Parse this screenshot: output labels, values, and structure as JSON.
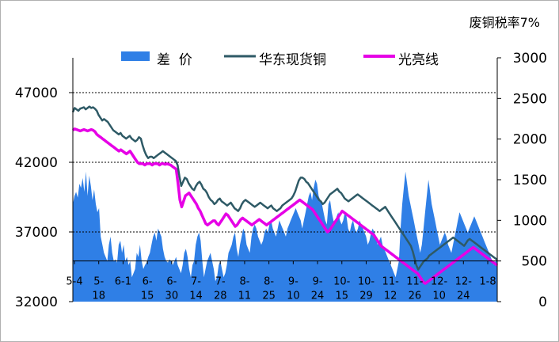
{
  "chart_data": {
    "type": "line",
    "title": "废铜税率7%",
    "legend_position": "top",
    "grid": "horizontal dashed",
    "colors": {
      "spread": "#2f7fe6",
      "east_china_copper": "#2e5a66",
      "bright_wire": "#e600e6"
    },
    "left_axis": {
      "ylim": [
        32000,
        49500
      ],
      "ticks": [
        "32000",
        "37000",
        "42000",
        "47000"
      ]
    },
    "right_axis": {
      "ylim": [
        0,
        3000
      ],
      "ticks": [
        "0",
        "500",
        "1000",
        "1500",
        "2000",
        "2500",
        "3000"
      ]
    },
    "x_labels": [
      [
        "5-4",
        ""
      ],
      [
        "5-",
        "18"
      ],
      [
        "6-1",
        ""
      ],
      [
        "6-",
        "15"
      ],
      [
        "6-",
        "30"
      ],
      [
        "7-",
        "14"
      ],
      [
        "7-",
        "28"
      ],
      [
        "8-",
        "11"
      ],
      [
        "8-",
        "25"
      ],
      [
        "9-",
        "10"
      ],
      [
        "9-",
        "24"
      ],
      [
        "10-",
        "15"
      ],
      [
        "10-",
        "29"
      ],
      [
        "11-",
        "12"
      ],
      [
        "11-",
        "26"
      ],
      [
        "12-",
        "10"
      ],
      [
        "12-",
        "24"
      ],
      [
        "1-8",
        ""
      ]
    ],
    "series": [
      {
        "name": "差  价",
        "type": "area",
        "axis": "right",
        "values": [
          1200,
          1300,
          1350,
          1280,
          1450,
          1400,
          1520,
          1350,
          1600,
          1300,
          1550,
          1420,
          1250,
          1380,
          1200,
          1100,
          1150,
          800,
          700,
          600,
          550,
          500,
          700,
          800,
          600,
          500,
          520,
          480,
          700,
          750,
          600,
          700,
          500,
          550,
          450,
          500,
          300,
          350,
          400,
          600,
          550,
          700,
          500,
          400,
          450,
          480,
          550,
          600,
          700,
          800,
          850,
          750,
          900,
          850,
          800,
          650,
          550,
          500,
          480,
          520,
          500,
          450,
          500,
          550,
          450,
          400,
          350,
          450,
          600,
          650,
          550,
          400,
          300,
          450,
          500,
          700,
          800,
          850,
          750,
          500,
          300,
          400,
          500,
          550,
          600,
          500,
          400,
          250,
          300,
          450,
          500,
          400,
          300,
          350,
          450,
          600,
          650,
          700,
          800,
          850,
          650,
          550,
          700,
          800,
          900,
          850,
          700,
          650,
          600,
          800,
          900,
          950,
          900,
          800,
          750,
          700,
          750,
          850,
          900,
          850,
          950,
          1000,
          900,
          850,
          800,
          900,
          1000,
          950,
          900,
          850,
          800,
          900,
          950,
          1000,
          1050,
          1100,
          1150,
          1100,
          1050,
          1000,
          900,
          1000,
          1100,
          1200,
          1300,
          1350,
          1250,
          1400,
          1500,
          1450,
          1300,
          1250,
          1200,
          1100,
          1000,
          950,
          1200,
          1250,
          1100,
          1000,
          950,
          1050,
          1100,
          1000,
          950,
          1000,
          1100,
          1050,
          900,
          850,
          950,
          1000,
          900,
          850,
          900,
          1000,
          950,
          900,
          850,
          800,
          700,
          750,
          850,
          900,
          850,
          800,
          700,
          750,
          800,
          700,
          650,
          600,
          550,
          500,
          450,
          400,
          350,
          300,
          400,
          500,
          900,
          1200,
          1400,
          1600,
          1450,
          1300,
          1200,
          1100,
          1000,
          900,
          800,
          700,
          600,
          700,
          900,
          1100,
          1300,
          1500,
          1350,
          1200,
          1100,
          1000,
          900,
          800,
          700,
          750,
          800,
          850,
          800,
          700,
          650,
          600,
          700,
          800,
          900,
          1000,
          1100,
          1050,
          1000,
          950,
          900,
          850,
          900,
          950,
          1000,
          1050,
          1000,
          950,
          900,
          850,
          800,
          750,
          700,
          650,
          600,
          550,
          500,
          450,
          500,
          520
        ]
      },
      {
        "name": "华东现货铜",
        "type": "line",
        "axis": "left",
        "values": [
          45600,
          45900,
          45800,
          45700,
          45850,
          45900,
          45950,
          45800,
          45900,
          46000,
          45900,
          45950,
          45850,
          45700,
          45400,
          45200,
          45000,
          45100,
          45000,
          44900,
          44700,
          44500,
          44300,
          44200,
          44100,
          44000,
          44100,
          43900,
          43800,
          43700,
          43800,
          43900,
          43700,
          43600,
          43500,
          43600,
          43800,
          43700,
          43200,
          42800,
          42500,
          42300,
          42400,
          42400,
          42300,
          42400,
          42500,
          42600,
          42700,
          42800,
          42700,
          42600,
          42500,
          42400,
          42300,
          42200,
          42100,
          41800,
          41000,
          40300,
          40600,
          40900,
          40800,
          40500,
          40300,
          40100,
          40000,
          40300,
          40500,
          40600,
          40400,
          40100,
          40000,
          39800,
          39500,
          39300,
          39200,
          39000,
          39100,
          39300,
          39400,
          39200,
          39100,
          39000,
          38900,
          39000,
          39100,
          38900,
          38700,
          38600,
          38500,
          38700,
          39000,
          39200,
          39300,
          39200,
          39100,
          39000,
          38900,
          38800,
          38900,
          39000,
          39100,
          39000,
          38900,
          38800,
          38700,
          38800,
          38900,
          38700,
          38600,
          38500,
          38600,
          38700,
          38900,
          39000,
          39100,
          39200,
          39300,
          39400,
          39600,
          39900,
          40300,
          40700,
          40900,
          40900,
          40800,
          40600,
          40500,
          40300,
          40100,
          39900,
          39700,
          39500,
          39300,
          39200,
          39000,
          39100,
          39300,
          39500,
          39700,
          39800,
          39900,
          40000,
          40100,
          39900,
          39800,
          39600,
          39400,
          39300,
          39200,
          39300,
          39400,
          39500,
          39600,
          39700,
          39600,
          39500,
          39400,
          39300,
          39200,
          39100,
          39000,
          38900,
          38800,
          38700,
          38600,
          38500,
          38600,
          38700,
          38800,
          38600,
          38400,
          38200,
          38000,
          37800,
          37600,
          37400,
          37200,
          37000,
          36800,
          36600,
          36400,
          36200,
          36000,
          35600,
          35100,
          34600,
          34300,
          34500,
          34700,
          34900,
          35000,
          35100,
          35300,
          35400,
          35500,
          35600,
          35700,
          35800,
          35900,
          36000,
          36100,
          36200,
          36300,
          36400,
          36500,
          36600,
          36500,
          36400,
          36300,
          36200,
          36100,
          36000,
          36200,
          36400,
          36500,
          36400,
          36300,
          36200,
          36100,
          36000,
          35900,
          35800,
          35700,
          35600,
          35500,
          35400,
          35300,
          35200,
          35100,
          35000
        ]
      },
      {
        "name": "光亮线",
        "type": "line",
        "axis": "left",
        "values": [
          44300,
          44400,
          44350,
          44300,
          44250,
          44300,
          44350,
          44300,
          44250,
          44300,
          44350,
          44300,
          44200,
          44000,
          43900,
          43800,
          43700,
          43600,
          43500,
          43400,
          43300,
          43200,
          43100,
          43000,
          42900,
          42800,
          42900,
          42800,
          42700,
          42600,
          42700,
          42800,
          42600,
          42400,
          42200,
          42000,
          41900,
          41900,
          41900,
          41800,
          41900,
          41900,
          41900,
          41800,
          41900,
          41900,
          41900,
          41800,
          41900,
          41900,
          41850,
          41900,
          41850,
          41800,
          41700,
          41600,
          41500,
          40500,
          39300,
          38800,
          39200,
          39600,
          39700,
          39800,
          39600,
          39400,
          39200,
          39000,
          38700,
          38500,
          38200,
          37900,
          37600,
          37500,
          37600,
          37700,
          37800,
          37800,
          37600,
          37500,
          37700,
          37900,
          38100,
          38300,
          38200,
          38000,
          37800,
          37600,
          37400,
          37500,
          37700,
          37900,
          38000,
          37900,
          37800,
          37700,
          37600,
          37500,
          37600,
          37700,
          37800,
          37900,
          37800,
          37700,
          37600,
          37500,
          37600,
          37700,
          37800,
          37900,
          38000,
          38100,
          38200,
          38300,
          38400,
          38500,
          38600,
          38700,
          38800,
          38900,
          39000,
          39100,
          39200,
          39300,
          39200,
          39100,
          39000,
          38900,
          38800,
          38700,
          38600,
          38400,
          38200,
          38000,
          37800,
          37600,
          37400,
          37200,
          37000,
          37100,
          37300,
          37500,
          37700,
          37900,
          38100,
          38300,
          38500,
          38400,
          38300,
          38200,
          38100,
          38000,
          37900,
          37800,
          37700,
          37600,
          37500,
          37400,
          37300,
          37200,
          37100,
          37000,
          36900,
          36800,
          36600,
          36400,
          36200,
          36000,
          35900,
          35800,
          35700,
          35600,
          35500,
          35400,
          35300,
          35200,
          35100,
          35000,
          34900,
          34800,
          34700,
          34600,
          34500,
          34400,
          34300,
          34200,
          34100,
          34000,
          33800,
          33600,
          33400,
          33300,
          33400,
          33500,
          33600,
          33700,
          33800,
          33900,
          34000,
          34100,
          34200,
          34300,
          34400,
          34500,
          34600,
          34700,
          34800,
          34900,
          35000,
          35100,
          35200,
          35300,
          35400,
          35500,
          35600,
          35700,
          35800,
          35900,
          35800,
          35700,
          35600,
          35500,
          35400,
          35300,
          35200,
          35100,
          35000,
          34900,
          34800,
          34700,
          34600
        ]
      }
    ]
  }
}
